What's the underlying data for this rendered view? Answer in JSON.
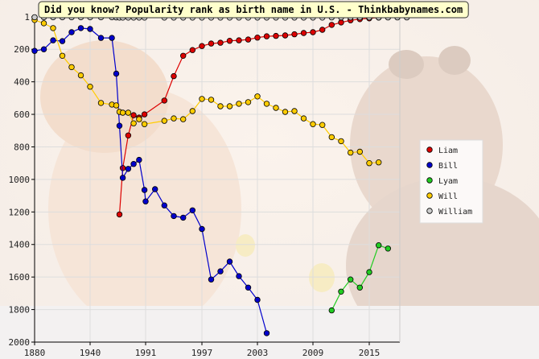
{
  "chart_data": {
    "type": "line",
    "title": "Did you know? Popularity rank as birth name in U.S. - Thinkbabynames.com",
    "xlabel": "",
    "ylabel": "",
    "x_ticks": [
      1880,
      1940,
      1991,
      1997,
      2003,
      2009,
      2015
    ],
    "y_ticks": [
      1,
      200,
      400,
      600,
      800,
      1000,
      1200,
      1400,
      1600,
      1800,
      2000
    ],
    "ylim": [
      1,
      2000
    ],
    "y_inverted": true,
    "grid": true,
    "legend_position": "right",
    "series": [
      {
        "name": "Liam",
        "color": "#dd0000",
        "points": [
          [
            1967,
            1215
          ],
          [
            1970,
            930
          ],
          [
            1975,
            730
          ],
          [
            1980,
            605
          ],
          [
            1985,
            620
          ],
          [
            1990,
            600
          ],
          [
            1993,
            515
          ],
          [
            1994,
            365
          ],
          [
            1995,
            240
          ],
          [
            1996,
            205
          ],
          [
            1997,
            180
          ],
          [
            1998,
            165
          ],
          [
            1999,
            160
          ],
          [
            2000,
            148
          ],
          [
            2001,
            145
          ],
          [
            2002,
            140
          ],
          [
            2003,
            128
          ],
          [
            2004,
            120
          ],
          [
            2005,
            118
          ],
          [
            2006,
            115
          ],
          [
            2007,
            108
          ],
          [
            2008,
            100
          ],
          [
            2009,
            95
          ],
          [
            2010,
            80
          ],
          [
            2011,
            50
          ],
          [
            2012,
            35
          ],
          [
            2013,
            22
          ],
          [
            2014,
            15
          ],
          [
            2015,
            10
          ],
          [
            2016,
            5
          ],
          [
            2017,
            3
          ],
          [
            2018,
            2
          ],
          [
            2019,
            1
          ]
        ]
      },
      {
        "name": "Bill",
        "color": "#0000cc",
        "points": [
          [
            1880,
            210
          ],
          [
            1890,
            200
          ],
          [
            1900,
            145
          ],
          [
            1910,
            150
          ],
          [
            1920,
            95
          ],
          [
            1930,
            70
          ],
          [
            1940,
            75
          ],
          [
            1950,
            130
          ],
          [
            1960,
            130
          ],
          [
            1964,
            350
          ],
          [
            1967,
            670
          ],
          [
            1970,
            990
          ],
          [
            1975,
            935
          ],
          [
            1980,
            905
          ],
          [
            1985,
            880
          ],
          [
            1990,
            1065
          ],
          [
            1991,
            1135
          ],
          [
            1992,
            1060
          ],
          [
            1993,
            1160
          ],
          [
            1994,
            1225
          ],
          [
            1995,
            1235
          ],
          [
            1996,
            1190
          ],
          [
            1997,
            1305
          ],
          [
            1998,
            1615
          ],
          [
            1999,
            1565
          ],
          [
            2000,
            1505
          ],
          [
            2001,
            1595
          ],
          [
            2002,
            1665
          ],
          [
            2003,
            1740
          ],
          [
            2004,
            1945
          ]
        ]
      },
      {
        "name": "Lyam",
        "color": "#22cc22",
        "points": [
          [
            2011,
            1805
          ],
          [
            2012,
            1690
          ],
          [
            2013,
            1615
          ],
          [
            2014,
            1665
          ],
          [
            2015,
            1570
          ],
          [
            2016,
            1405
          ],
          [
            2017,
            1425
          ]
        ]
      },
      {
        "name": "Will",
        "color": "#ffcc00",
        "points": [
          [
            1880,
            20
          ],
          [
            1890,
            40
          ],
          [
            1900,
            70
          ],
          [
            1910,
            240
          ],
          [
            1920,
            310
          ],
          [
            1930,
            360
          ],
          [
            1940,
            430
          ],
          [
            1950,
            530
          ],
          [
            1960,
            540
          ],
          [
            1964,
            545
          ],
          [
            1967,
            585
          ],
          [
            1970,
            590
          ],
          [
            1975,
            590
          ],
          [
            1980,
            655
          ],
          [
            1985,
            630
          ],
          [
            1990,
            660
          ],
          [
            1993,
            640
          ],
          [
            1994,
            625
          ],
          [
            1995,
            630
          ],
          [
            1996,
            580
          ],
          [
            1997,
            505
          ],
          [
            1998,
            510
          ],
          [
            1999,
            550
          ],
          [
            2000,
            550
          ],
          [
            2001,
            535
          ],
          [
            2002,
            525
          ],
          [
            2003,
            490
          ],
          [
            2004,
            535
          ],
          [
            2005,
            560
          ],
          [
            2006,
            585
          ],
          [
            2007,
            580
          ],
          [
            2008,
            625
          ],
          [
            2009,
            660
          ],
          [
            2010,
            665
          ],
          [
            2011,
            740
          ],
          [
            2012,
            765
          ],
          [
            2013,
            835
          ],
          [
            2014,
            830
          ],
          [
            2015,
            900
          ],
          [
            2016,
            895
          ]
        ]
      },
      {
        "name": "William",
        "color": "#cccccc",
        "points": [
          [
            1880,
            3
          ],
          [
            1890,
            3
          ],
          [
            1900,
            3
          ],
          [
            1910,
            3
          ],
          [
            1920,
            3
          ],
          [
            1930,
            3
          ],
          [
            1940,
            3
          ],
          [
            1950,
            3
          ],
          [
            1960,
            3
          ],
          [
            1964,
            4
          ],
          [
            1967,
            5
          ],
          [
            1970,
            5
          ],
          [
            1975,
            5
          ],
          [
            1980,
            5
          ],
          [
            1985,
            5
          ],
          [
            1990,
            5
          ],
          [
            1993,
            5
          ],
          [
            1994,
            5
          ],
          [
            1995,
            5
          ],
          [
            1996,
            5
          ],
          [
            1997,
            5
          ],
          [
            1998,
            5
          ],
          [
            1999,
            5
          ],
          [
            2000,
            5
          ],
          [
            2001,
            5
          ],
          [
            2002,
            5
          ],
          [
            2003,
            5
          ],
          [
            2004,
            5
          ],
          [
            2005,
            5
          ],
          [
            2006,
            5
          ],
          [
            2007,
            5
          ],
          [
            2008,
            5
          ],
          [
            2009,
            5
          ],
          [
            2010,
            5
          ],
          [
            2011,
            4
          ],
          [
            2012,
            4
          ],
          [
            2013,
            4
          ],
          [
            2014,
            4
          ],
          [
            2015,
            4
          ],
          [
            2016,
            4
          ],
          [
            2017,
            4
          ],
          [
            2018,
            4
          ],
          [
            2019,
            4
          ]
        ]
      }
    ]
  }
}
